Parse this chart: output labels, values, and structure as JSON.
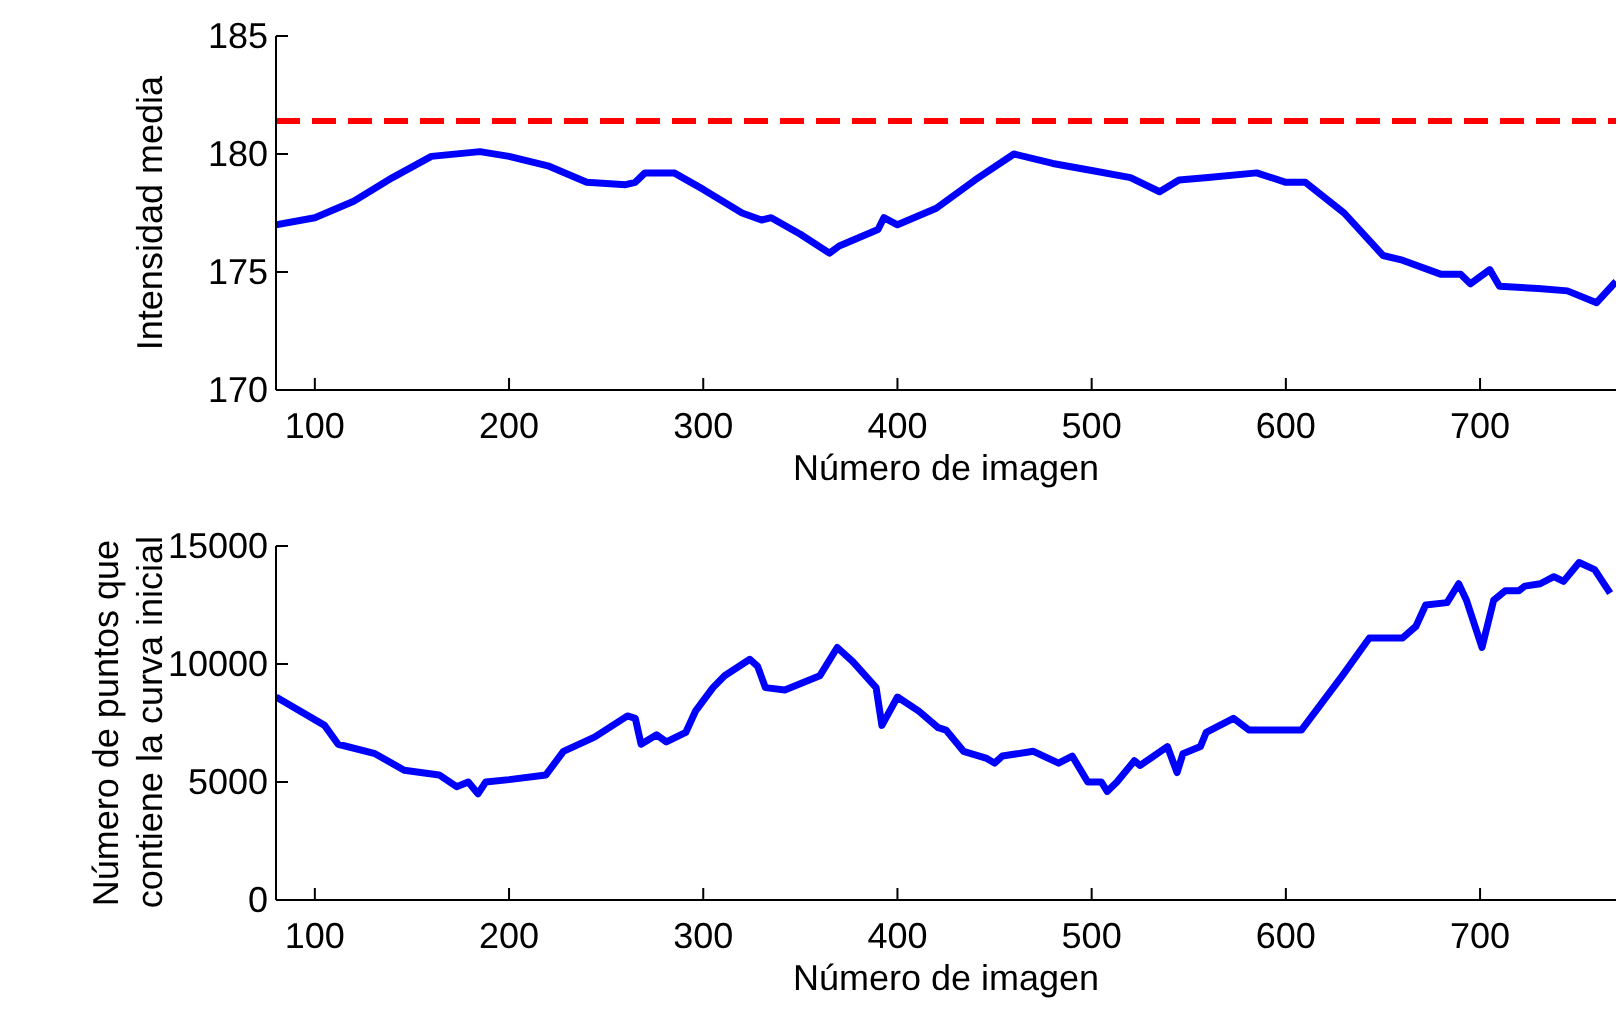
{
  "chart_data": [
    {
      "type": "line",
      "xlabel": "Número de imagen",
      "ylabel": "Intensidad media",
      "xlim": [
        80,
        770
      ],
      "xticks": [
        100,
        200,
        300,
        400,
        500,
        600,
        700
      ],
      "ylim": [
        170,
        185
      ],
      "yticks": [
        170,
        175,
        180,
        185
      ],
      "grid": false,
      "legend": false,
      "marker": "none",
      "x": [
        80,
        100,
        120,
        140,
        160,
        185,
        200,
        220,
        240,
        260,
        265,
        270,
        285,
        300,
        320,
        330,
        335,
        350,
        365,
        370,
        390,
        393,
        400,
        420,
        440,
        460,
        480,
        500,
        520,
        535,
        545,
        560,
        585,
        600,
        610,
        630,
        650,
        660,
        680,
        690,
        695,
        705,
        710,
        730,
        745,
        760,
        770
      ],
      "series": [
        {
          "color": "#0000ff",
          "values": [
            177.0,
            177.3,
            178.0,
            179.0,
            179.9,
            180.1,
            179.9,
            179.5,
            178.8,
            178.7,
            178.8,
            179.2,
            179.2,
            178.5,
            177.5,
            177.2,
            177.3,
            176.6,
            175.8,
            176.1,
            176.8,
            177.3,
            177.0,
            177.7,
            178.9,
            180.0,
            179.6,
            179.3,
            179.0,
            178.4,
            178.9,
            179.0,
            179.2,
            178.8,
            178.8,
            177.5,
            175.7,
            175.5,
            174.9,
            174.9,
            174.5,
            175.1,
            174.4,
            174.3,
            174.2,
            173.7,
            174.6
          ]
        }
      ],
      "ref_lines": [
        {
          "axis": "y",
          "value": 181.4,
          "color": "#ff0000",
          "line_style": "dashed"
        }
      ]
    },
    {
      "type": "line",
      "xlabel": "Número de imagen",
      "ylabel": "Número de puntos que\ncontiene la curva inicial",
      "xlim": [
        80,
        770
      ],
      "xticks": [
        100,
        200,
        300,
        400,
        500,
        600,
        700
      ],
      "ylim": [
        0,
        15000
      ],
      "yticks": [
        0,
        5000,
        10000,
        15000
      ],
      "grid": false,
      "legend": false,
      "marker": "none",
      "x": [
        80,
        105,
        112,
        131,
        146,
        164,
        173,
        179,
        184,
        188,
        200,
        219,
        228,
        244,
        261,
        265,
        268,
        276,
        281,
        291,
        296,
        305,
        311,
        324,
        328,
        332,
        342,
        360,
        369,
        377,
        389,
        392,
        400,
        411,
        421,
        425,
        434,
        446,
        450,
        454,
        470,
        483,
        490,
        498,
        505,
        508,
        513,
        522,
        525,
        539,
        544,
        547,
        556,
        559,
        573,
        581,
        595,
        608,
        629,
        643,
        660,
        667,
        672,
        683,
        689,
        693,
        701,
        707,
        713,
        720,
        723,
        731,
        738,
        743,
        751,
        759,
        767
      ],
      "series": [
        {
          "color": "#0000ff",
          "values": [
            8600,
            7400,
            6600,
            6200,
            5500,
            5300,
            4800,
            5000,
            4500,
            5000,
            5100,
            5300,
            6300,
            6900,
            7800,
            7700,
            6600,
            7000,
            6700,
            7100,
            8000,
            9000,
            9500,
            10200,
            9900,
            9000,
            8900,
            9500,
            10700,
            10100,
            9000,
            7400,
            8600,
            8000,
            7300,
            7200,
            6300,
            6000,
            5800,
            6100,
            6300,
            5800,
            6100,
            5000,
            5000,
            4600,
            5000,
            5900,
            5700,
            6500,
            5400,
            6200,
            6500,
            7100,
            7700,
            7200,
            7200,
            7200,
            9500,
            11100,
            11100,
            11600,
            12500,
            12600,
            13400,
            12700,
            10700,
            12700,
            13100,
            13100,
            13300,
            13400,
            13700,
            13500,
            14300,
            14000,
            13000
          ]
        }
      ]
    }
  ]
}
